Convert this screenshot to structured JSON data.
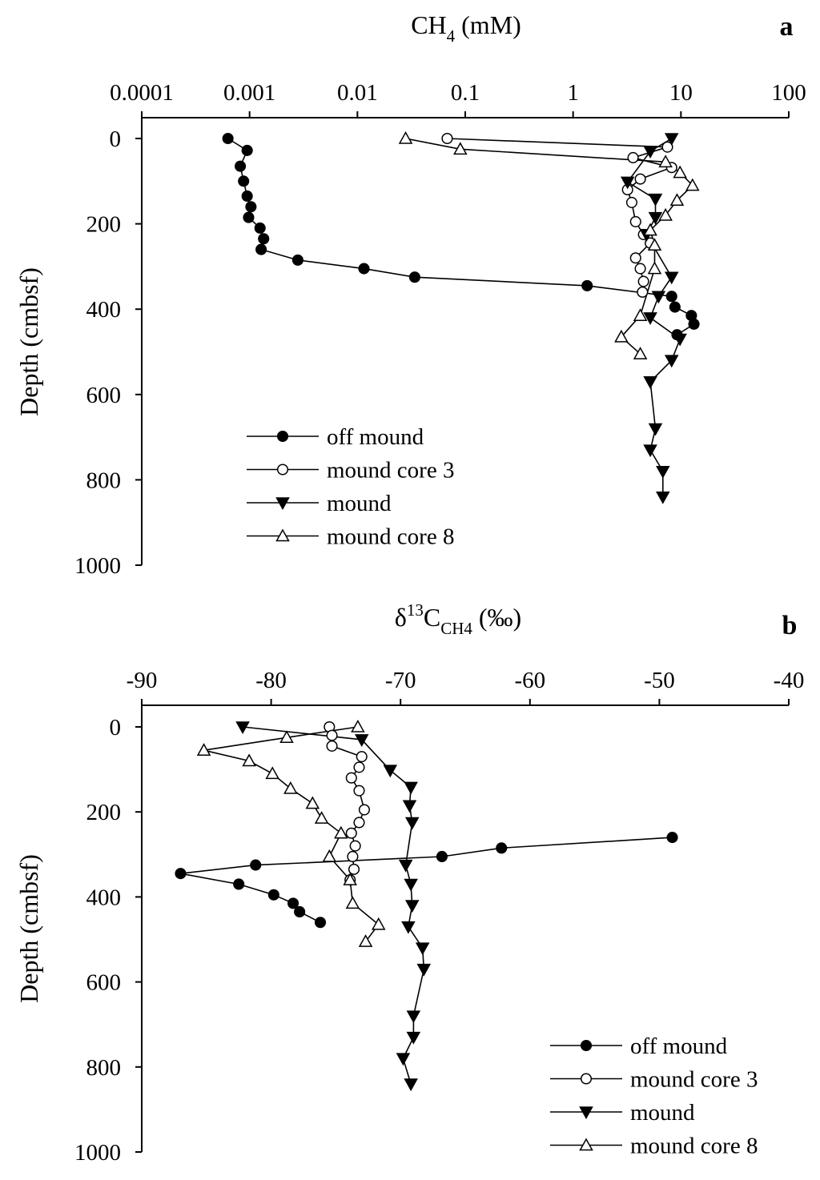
{
  "chart_data": [
    {
      "type": "line",
      "panel_letter": "a",
      "title_main": "CH",
      "title_sub": "4",
      "title_tail": " (mM)",
      "xscale": "log",
      "xlim": [
        0.0001,
        100
      ],
      "x_ticks": [
        0.0001,
        0.001,
        0.01,
        0.1,
        1,
        10,
        100
      ],
      "x_tick_labels": [
        "0.0001",
        "0.001",
        "0.01",
        "0.1",
        "1",
        "10",
        "100"
      ],
      "ylabel": "Depth (cmbsf)",
      "ylim": [
        0,
        1000
      ],
      "y_ticks": [
        0,
        200,
        400,
        600,
        800,
        1000
      ],
      "y_tick_labels": [
        "0",
        "200",
        "400",
        "600",
        "800",
        "1000"
      ],
      "legend_position": "lower-left",
      "series": [
        {
          "name": "off mound",
          "marker": "circle-filled",
          "points": [
            [
              0.00063,
              0
            ],
            [
              0.00095,
              28
            ],
            [
              0.00082,
              65
            ],
            [
              0.00088,
              100
            ],
            [
              0.00095,
              135
            ],
            [
              0.00103,
              160
            ],
            [
              0.00098,
              185
            ],
            [
              0.00125,
              210
            ],
            [
              0.00135,
              235
            ],
            [
              0.00128,
              260
            ],
            [
              0.0028,
              285
            ],
            [
              0.0115,
              305
            ],
            [
              0.034,
              325
            ],
            [
              1.35,
              345
            ],
            [
              8.2,
              370
            ],
            [
              8.8,
              395
            ],
            [
              12.5,
              415
            ],
            [
              13.2,
              435
            ],
            [
              9.2,
              460
            ]
          ]
        },
        {
          "name": "mound core 3",
          "marker": "circle-open",
          "points": [
            [
              0.068,
              0
            ],
            [
              7.5,
              20
            ],
            [
              3.6,
              45
            ],
            [
              8.2,
              68
            ],
            [
              4.2,
              95
            ],
            [
              3.2,
              120
            ],
            [
              3.5,
              150
            ],
            [
              3.8,
              195
            ],
            [
              4.5,
              225
            ],
            [
              5.2,
              245
            ],
            [
              3.8,
              280
            ],
            [
              4.2,
              305
            ],
            [
              4.5,
              335
            ],
            [
              4.4,
              360
            ]
          ]
        },
        {
          "name": "mound",
          "marker": "triangle-down-filled",
          "points": [
            [
              8.2,
              0
            ],
            [
              5.2,
              30
            ],
            [
              3.2,
              102
            ],
            [
              5.8,
              142
            ],
            [
              5.8,
              185
            ],
            [
              4.8,
              225
            ],
            [
              8.2,
              325
            ],
            [
              6.2,
              370
            ],
            [
              5.2,
              420
            ],
            [
              9.8,
              470
            ],
            [
              8.2,
              520
            ],
            [
              5.2,
              570
            ],
            [
              5.8,
              680
            ],
            [
              5.2,
              730
            ],
            [
              6.8,
              780
            ],
            [
              6.8,
              840
            ]
          ]
        },
        {
          "name": "mound core 8",
          "marker": "triangle-up-open",
          "points": [
            [
              0.028,
              0
            ],
            [
              0.09,
              25
            ],
            [
              7.2,
              55
            ],
            [
              9.8,
              80
            ],
            [
              12.8,
              110
            ],
            [
              9.2,
              145
            ],
            [
              7.2,
              180
            ],
            [
              5.2,
              215
            ],
            [
              5.7,
              250
            ],
            [
              5.7,
              305
            ],
            [
              4.2,
              415
            ],
            [
              2.8,
              465
            ],
            [
              4.2,
              505
            ]
          ]
        }
      ]
    },
    {
      "type": "line",
      "panel_letter": "b",
      "title_main": "δ",
      "title_sup": "13",
      "title_main2": "C",
      "title_sub": "CH4",
      "title_tail": " (‰)",
      "xscale": "linear",
      "xlim": [
        -90,
        -40
      ],
      "x_ticks": [
        -90,
        -80,
        -70,
        -60,
        -50,
        -40
      ],
      "x_tick_labels": [
        "-90",
        "-80",
        "-70",
        "-60",
        "-50",
        "-40"
      ],
      "ylabel": "Depth (cmbsf)",
      "ylim": [
        0,
        1000
      ],
      "y_ticks": [
        0,
        200,
        400,
        600,
        800,
        1000
      ],
      "y_tick_labels": [
        "0",
        "200",
        "400",
        "600",
        "800",
        "1000"
      ],
      "legend_position": "lower-right",
      "series": [
        {
          "name": "off mound",
          "marker": "circle-filled",
          "points": [
            [
              -49.0,
              260
            ],
            [
              -62.2,
              285
            ],
            [
              -66.8,
              305
            ],
            [
              -81.2,
              325
            ],
            [
              -87.0,
              345
            ],
            [
              -82.5,
              370
            ],
            [
              -79.8,
              395
            ],
            [
              -78.3,
              415
            ],
            [
              -77.8,
              435
            ],
            [
              -76.2,
              460
            ]
          ]
        },
        {
          "name": "mound core 3",
          "marker": "circle-open",
          "points": [
            [
              -75.5,
              0
            ],
            [
              -75.3,
              20
            ],
            [
              -75.3,
              45
            ],
            [
              -73.0,
              70
            ],
            [
              -73.2,
              95
            ],
            [
              -73.8,
              120
            ],
            [
              -73.2,
              150
            ],
            [
              -72.8,
              195
            ],
            [
              -73.2,
              225
            ],
            [
              -73.8,
              250
            ],
            [
              -73.5,
              280
            ],
            [
              -73.7,
              305
            ],
            [
              -73.6,
              335
            ],
            [
              -73.9,
              360
            ]
          ]
        },
        {
          "name": "mound",
          "marker": "triangle-down-filled",
          "points": [
            [
              -82.2,
              0
            ],
            [
              -73.0,
              30
            ],
            [
              -70.8,
              102
            ],
            [
              -69.2,
              142
            ],
            [
              -69.3,
              185
            ],
            [
              -69.1,
              225
            ],
            [
              -69.6,
              325
            ],
            [
              -69.2,
              370
            ],
            [
              -69.1,
              420
            ],
            [
              -69.4,
              470
            ],
            [
              -68.3,
              520
            ],
            [
              -68.2,
              570
            ],
            [
              -69.0,
              680
            ],
            [
              -69.0,
              730
            ],
            [
              -69.8,
              780
            ],
            [
              -69.2,
              840
            ]
          ]
        },
        {
          "name": "mound core 8",
          "marker": "triangle-up-open",
          "points": [
            [
              -73.3,
              0
            ],
            [
              -78.8,
              25
            ],
            [
              -85.2,
              55
            ],
            [
              -81.7,
              80
            ],
            [
              -79.9,
              110
            ],
            [
              -78.5,
              145
            ],
            [
              -76.8,
              180
            ],
            [
              -76.1,
              215
            ],
            [
              -74.6,
              250
            ],
            [
              -75.5,
              305
            ],
            [
              -73.9,
              360
            ],
            [
              -73.7,
              415
            ],
            [
              -71.7,
              465
            ],
            [
              -72.7,
              505
            ]
          ]
        }
      ]
    }
  ]
}
